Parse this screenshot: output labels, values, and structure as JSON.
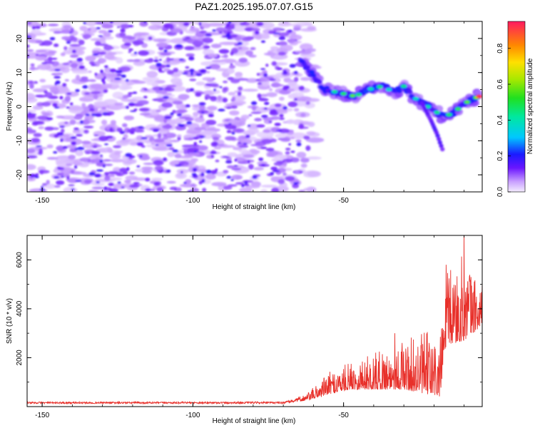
{
  "title": "PAZ1.2025.195.07.07.G15",
  "chart_data": [
    {
      "type": "heatmap",
      "xlabel": "Height of straight line (km)",
      "ylabel": "Frequency (Hz)",
      "xlim": [
        -155,
        -4
      ],
      "ylim": [
        -25,
        25
      ],
      "xticks": [
        -150,
        -100,
        -50
      ],
      "yticks": [
        -20,
        -10,
        0,
        10,
        20
      ],
      "colorbar": {
        "label": "Normalized spectral amplitude",
        "range": [
          0,
          0.95
        ],
        "ticks": [
          0.0,
          0.2,
          0.4,
          0.6,
          0.8
        ]
      },
      "noise_region_x": [
        -155,
        -64
      ],
      "signal_track": [
        {
          "x": -64,
          "freq": 13
        },
        {
          "x": -60,
          "freq": 9
        },
        {
          "x": -56,
          "freq": 5
        },
        {
          "x": -51,
          "freq": 4
        },
        {
          "x": -46,
          "freq": 3
        },
        {
          "x": -42,
          "freq": 5
        },
        {
          "x": -37,
          "freq": 6
        },
        {
          "x": -33,
          "freq": 4
        },
        {
          "x": -30,
          "freq": 6
        },
        {
          "x": -27,
          "freq": 3
        },
        {
          "x": -24,
          "freq": 1
        },
        {
          "x": -20,
          "freq": -1
        },
        {
          "x": -17,
          "freq": -3
        },
        {
          "x": -14,
          "freq": -2
        },
        {
          "x": -11,
          "freq": 0
        },
        {
          "x": -8,
          "freq": 2
        },
        {
          "x": -5,
          "freq": 3
        }
      ],
      "secondary_track": [
        {
          "x": -24,
          "freq": 1
        },
        {
          "x": -21,
          "freq": -4
        },
        {
          "x": -19,
          "freq": -8
        },
        {
          "x": -17,
          "freq": -13
        }
      ]
    },
    {
      "type": "line",
      "xlabel": "Height of straight line (km)",
      "ylabel": "SNR (10 * v/v)",
      "xlim": [
        -155,
        -4
      ],
      "ylim": [
        0,
        7000
      ],
      "xticks": [
        -150,
        -100,
        -50
      ],
      "yticks": [
        2000,
        4000,
        6000
      ],
      "series": [
        {
          "color": "#e8302a",
          "envelope": [
            {
              "x": -155,
              "base": 120,
              "amp": 120
            },
            {
              "x": -70,
              "base": 120,
              "amp": 130
            },
            {
              "x": -62,
              "base": 250,
              "amp": 300
            },
            {
              "x": -55,
              "base": 500,
              "amp": 900
            },
            {
              "x": -48,
              "base": 700,
              "amp": 1100
            },
            {
              "x": -40,
              "base": 700,
              "amp": 1500
            },
            {
              "x": -30,
              "base": 700,
              "amp": 2000
            },
            {
              "x": -22,
              "base": 500,
              "amp": 2600
            },
            {
              "x": -18,
              "base": 400,
              "amp": 2400
            },
            {
              "x": -16,
              "base": 2500,
              "amp": 3000
            },
            {
              "x": -10,
              "base": 2700,
              "amp": 3600
            },
            {
              "x": -5,
              "base": 3200,
              "amp": 1800
            }
          ],
          "peaks": [
            {
              "x": -10,
              "y": 7000
            },
            {
              "x": -16,
              "y": 5800
            },
            {
              "x": -13,
              "y": 4700
            },
            {
              "x": -4,
              "y": 5100
            },
            {
              "x": -6,
              "y": 4100
            },
            {
              "x": -33,
              "y": 3000
            }
          ]
        }
      ]
    }
  ]
}
